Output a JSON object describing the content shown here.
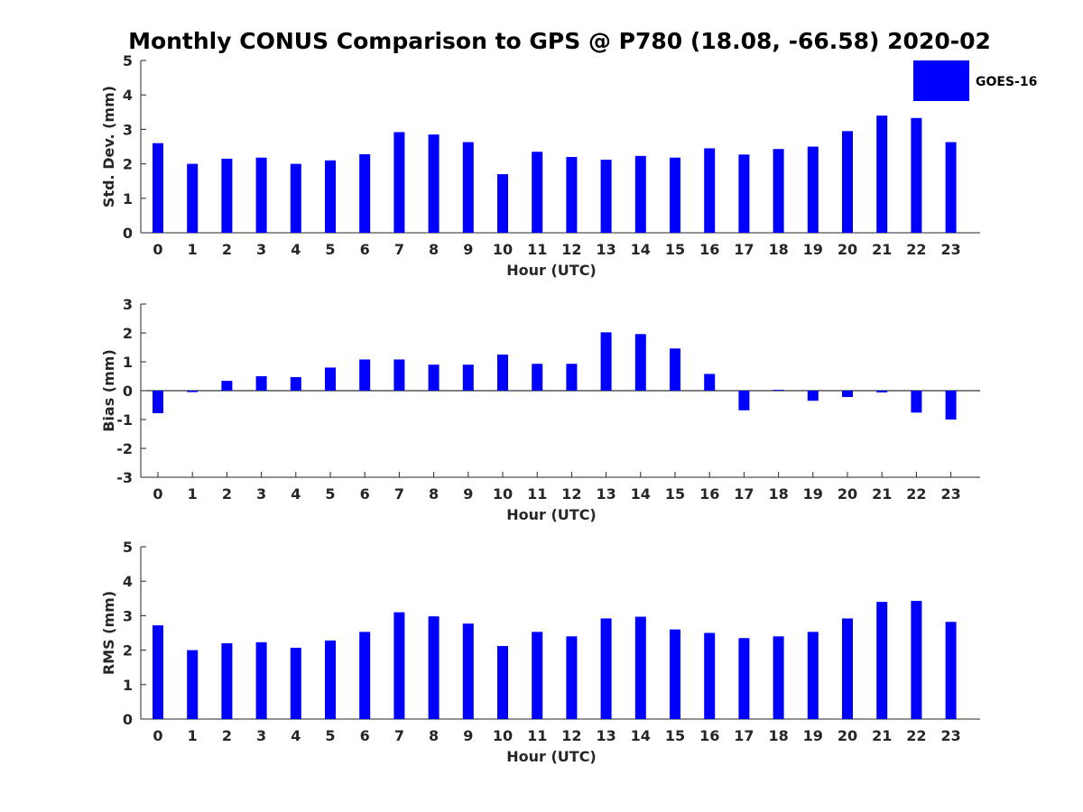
{
  "title": "Monthly CONUS Comparison to GPS @ P780 (18.08, -66.58) 2020-02",
  "legend": {
    "label": "GOES-16",
    "placement": "top-right",
    "color": "#0000ff"
  },
  "chart_data": [
    {
      "type": "bar",
      "xlabel": "Hour (UTC)",
      "ylabel": "Std. Dev. (mm)",
      "ylim": [
        0,
        5
      ],
      "yticks": [
        "0",
        "1",
        "2",
        "3",
        "4",
        "5"
      ],
      "categories": [
        "0",
        "1",
        "2",
        "3",
        "4",
        "5",
        "6",
        "7",
        "8",
        "9",
        "10",
        "11",
        "12",
        "13",
        "14",
        "15",
        "16",
        "17",
        "18",
        "19",
        "20",
        "21",
        "22",
        "23"
      ],
      "series": [
        {
          "name": "GOES-16",
          "color": "#0000ff",
          "values": [
            2.6,
            2.0,
            2.15,
            2.18,
            2.0,
            2.1,
            2.28,
            2.92,
            2.85,
            2.63,
            1.7,
            2.35,
            2.2,
            2.12,
            2.23,
            2.18,
            2.45,
            2.27,
            2.43,
            2.5,
            2.95,
            3.4,
            3.33,
            2.63
          ]
        }
      ],
      "grid": false
    },
    {
      "type": "bar",
      "xlabel": "Hour (UTC)",
      "ylabel": "Bias (mm)",
      "ylim": [
        -3,
        3
      ],
      "yticks": [
        "-3",
        "-2",
        "-1",
        "0",
        "1",
        "2",
        "3"
      ],
      "categories": [
        "0",
        "1",
        "2",
        "3",
        "4",
        "5",
        "6",
        "7",
        "8",
        "9",
        "10",
        "11",
        "12",
        "13",
        "14",
        "15",
        "16",
        "17",
        "18",
        "19",
        "20",
        "21",
        "22",
        "23"
      ],
      "series": [
        {
          "name": "GOES-16",
          "color": "#0000ff",
          "values": [
            -0.78,
            -0.05,
            0.34,
            0.5,
            0.47,
            0.8,
            1.08,
            1.08,
            0.9,
            0.9,
            1.25,
            0.93,
            0.93,
            2.02,
            1.96,
            1.46,
            0.58,
            -0.68,
            0.03,
            -0.35,
            -0.22,
            -0.06,
            -0.76,
            -1.0
          ]
        }
      ],
      "grid": false
    },
    {
      "type": "bar",
      "xlabel": "Hour (UTC)",
      "ylabel": "RMS (mm)",
      "ylim": [
        0,
        5
      ],
      "yticks": [
        "0",
        "1",
        "2",
        "3",
        "4",
        "5"
      ],
      "categories": [
        "0",
        "1",
        "2",
        "3",
        "4",
        "5",
        "6",
        "7",
        "8",
        "9",
        "10",
        "11",
        "12",
        "13",
        "14",
        "15",
        "16",
        "17",
        "18",
        "19",
        "20",
        "21",
        "22",
        "23"
      ],
      "series": [
        {
          "name": "GOES-16",
          "color": "#0000ff",
          "values": [
            2.72,
            2.0,
            2.2,
            2.23,
            2.07,
            2.28,
            2.53,
            3.1,
            2.98,
            2.77,
            2.12,
            2.53,
            2.4,
            2.92,
            2.97,
            2.6,
            2.5,
            2.35,
            2.4,
            2.53,
            2.92,
            3.4,
            3.43,
            2.82
          ]
        }
      ],
      "grid": false
    }
  ]
}
